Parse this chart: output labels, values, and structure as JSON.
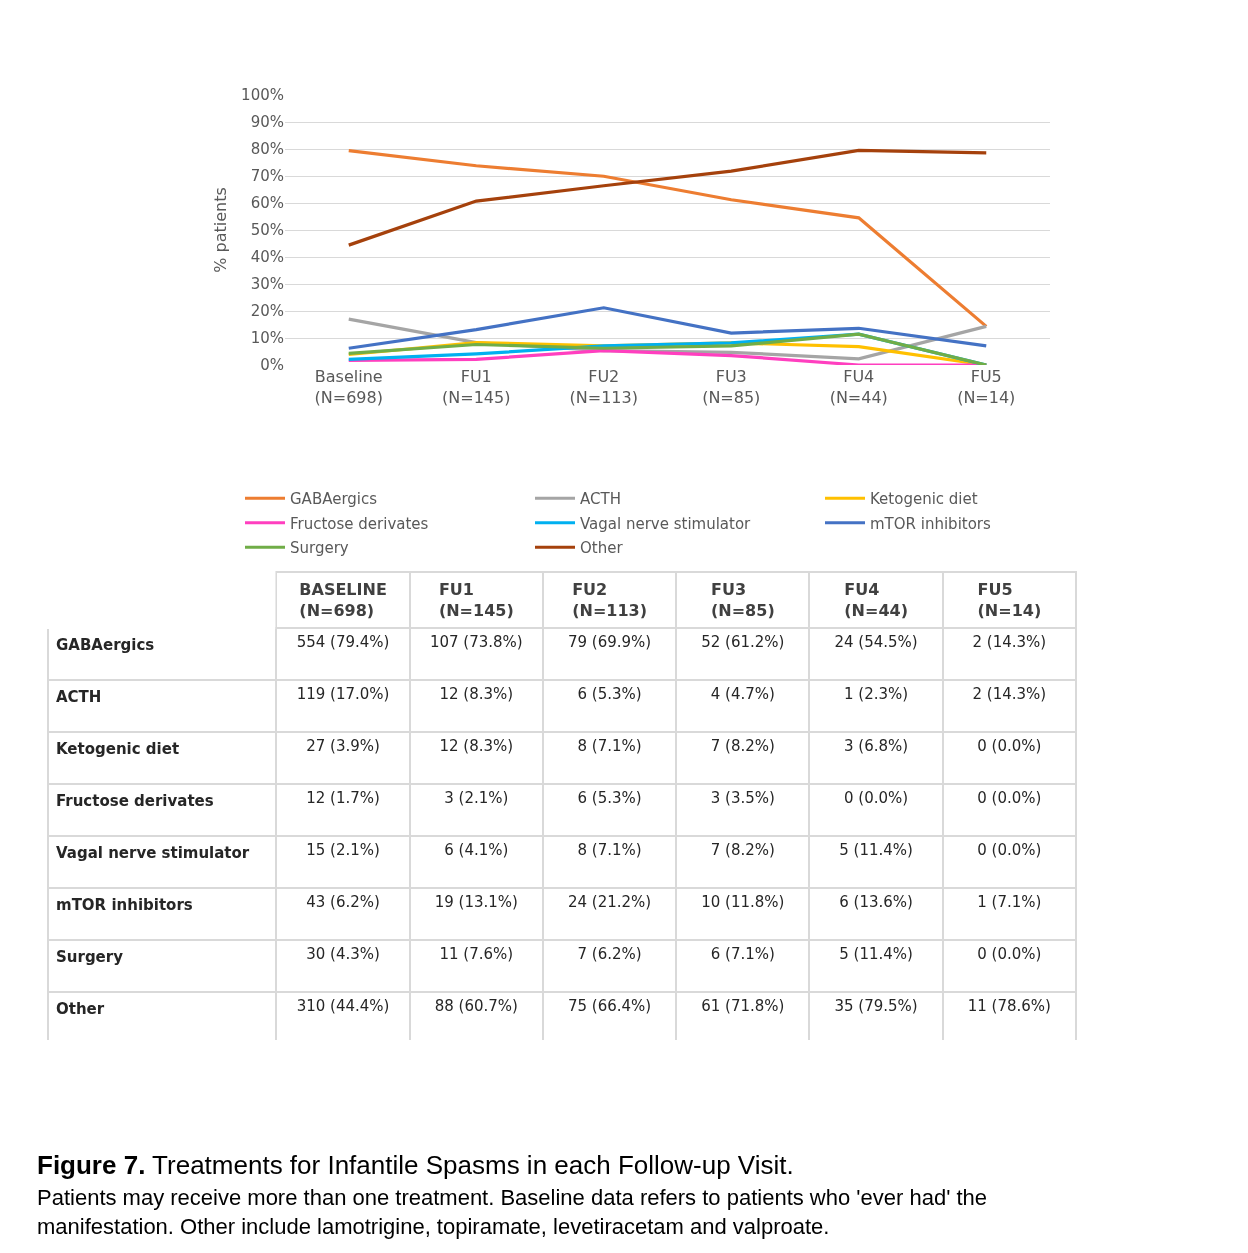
{
  "chart_data": {
    "type": "line",
    "title": "Figure 7. Treatments for Infantile Spasms in each Follow-up Visit.",
    "subtitle": "Patients may receive more than one treatment. Baseline data refers to patients who 'ever had' the manifestation. Other include lamotrigine, topiramate, levetiracetam and valproate.",
    "ylabel": "% patients",
    "annotations": [
      "BASELINE (N=698)",
      "FU1 (N=145)",
      "FU2 (N=113)",
      "FU3 (N=85)",
      "FU4 (N=44)",
      "FU5 (N=14)"
    ],
    "categories": [
      "Baseline (N=698)",
      "FU1 (N=145)",
      "FU2 (N=113)",
      "FU3 (N=85)",
      "FU4 (N=44)",
      "FU5 (N=14)"
    ],
    "series": [
      {
        "name": "GABAergics",
        "color": "#ed7d31",
        "values": [
          79.4,
          73.8,
          69.9,
          61.2,
          54.5,
          14.3
        ],
        "value_labels": [
          "554 (79.4%)",
          "107 (73.8%)",
          "79 (69.9%)",
          "52 (61.2%)",
          "24 (54.5%)",
          "2 (14.3%)"
        ]
      },
      {
        "name": "ACTH",
        "color": "#a5a5a5",
        "values": [
          17.0,
          8.3,
          5.3,
          4.7,
          2.3,
          14.3
        ],
        "value_labels": [
          "119 (17.0%)",
          "12 (8.3%)",
          "6 (5.3%)",
          "4 (4.7%)",
          "1 (2.3%)",
          "2 (14.3%)"
        ]
      },
      {
        "name": "Ketogenic diet",
        "color": "#ffc000",
        "values": [
          3.9,
          8.3,
          7.1,
          8.2,
          6.8,
          0.0
        ],
        "value_labels": [
          "27 (3.9%)",
          "12 (8.3%)",
          "8 (7.1%)",
          "7 (8.2%)",
          "3 (6.8%)",
          "0 (0.0%)"
        ]
      },
      {
        "name": "Fructose derivates",
        "color": "#ff3fbf",
        "values": [
          1.7,
          2.1,
          5.3,
          3.5,
          0.0,
          0.0
        ],
        "value_labels": [
          "12 (1.7%)",
          "3 (2.1%)",
          "6 (5.3%)",
          "3 (3.5%)",
          "0 (0.0%)",
          "0 (0.0%)"
        ]
      },
      {
        "name": "Vagal nerve stimulator",
        "color": "#00b0f0",
        "values": [
          2.1,
          4.1,
          7.1,
          8.2,
          11.4,
          0.0
        ],
        "value_labels": [
          "15 (2.1%)",
          "6 (4.1%)",
          "8 (7.1%)",
          "7 (8.2%)",
          "5 (11.4%)",
          "0 (0.0%)"
        ]
      },
      {
        "name": "mTOR inhibitors",
        "color": "#4472c4",
        "values": [
          6.2,
          13.1,
          21.2,
          11.8,
          13.6,
          7.1
        ],
        "value_labels": [
          "43 (6.2%)",
          "19 (13.1%)",
          "24 (21.2%)",
          "10 (11.8%)",
          "6 (13.6%)",
          "1 (7.1%)"
        ]
      },
      {
        "name": "Surgery",
        "color": "#70ad47",
        "values": [
          4.3,
          7.6,
          6.2,
          7.1,
          11.4,
          0.0
        ],
        "value_labels": [
          "30 (4.3%)",
          "11 (7.6%)",
          "7 (6.2%)",
          "6 (7.1%)",
          "5 (11.4%)",
          "0 (0.0%)"
        ]
      },
      {
        "name": "Other",
        "color": "#a5410c",
        "values": [
          44.4,
          60.7,
          66.4,
          71.8,
          79.5,
          78.6
        ],
        "value_labels": [
          "310 (44.4%)",
          "88 (60.7%)",
          "75 (66.4%)",
          "61 (71.8%)",
          "35 (79.5%)",
          "11 (78.6%)"
        ]
      }
    ],
    "ylim": [
      0,
      100
    ],
    "yticks": [
      {
        "value": 0,
        "label": "0%"
      },
      {
        "value": 10,
        "label": "10%"
      },
      {
        "value": 20,
        "label": "20%"
      },
      {
        "value": 30,
        "label": "30%"
      },
      {
        "value": 40,
        "label": "40%"
      },
      {
        "value": 50,
        "label": "50%"
      },
      {
        "value": 60,
        "label": "60%"
      },
      {
        "value": 70,
        "label": "70%"
      },
      {
        "value": 80,
        "label": "80%"
      },
      {
        "value": 90,
        "label": "90%"
      },
      {
        "value": 100,
        "label": "100%"
      }
    ],
    "grid": "y",
    "legend": "bottom",
    "marker": "none",
    "line_style": "solid"
  }
}
